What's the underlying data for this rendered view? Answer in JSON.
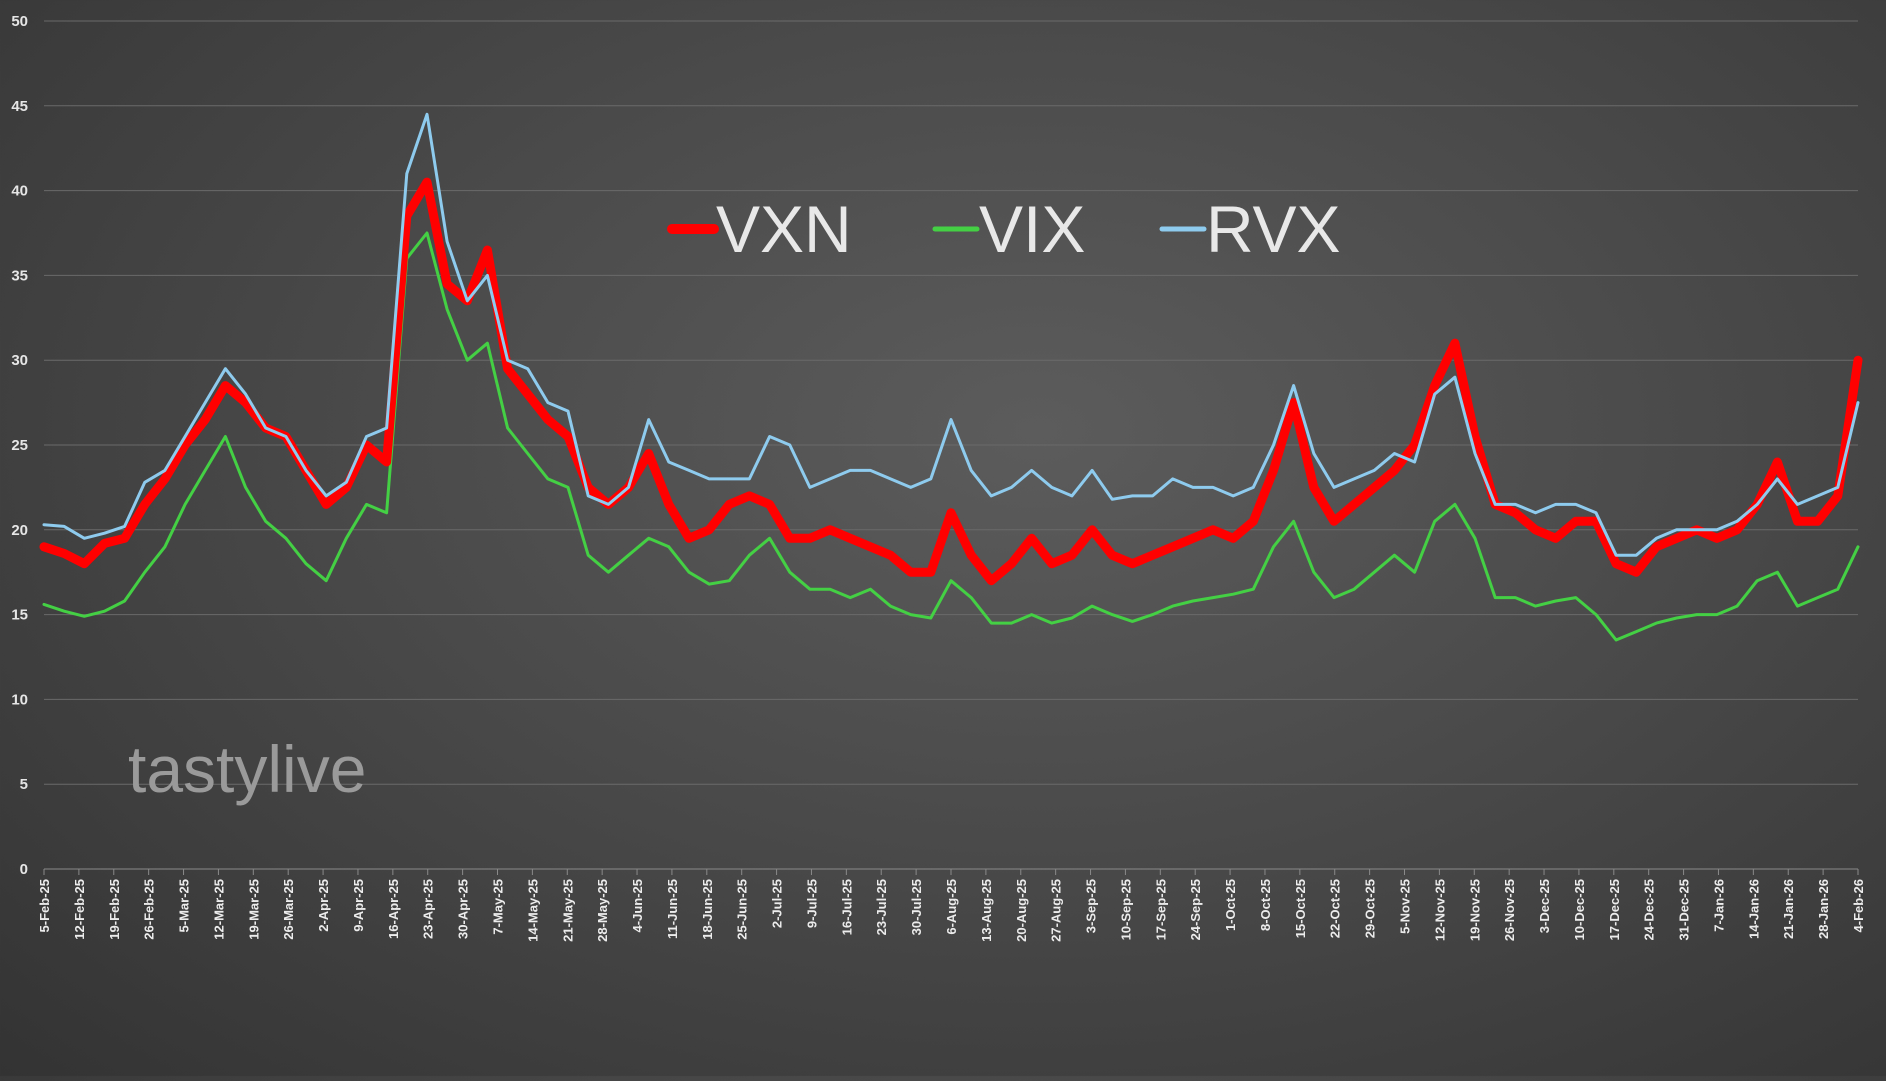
{
  "watermark": "tastylive",
  "chart_data": {
    "type": "line",
    "title": "",
    "xlabel": "",
    "ylabel": "",
    "ylim": [
      0,
      50
    ],
    "yticks": [
      0,
      5,
      10,
      15,
      20,
      25,
      30,
      35,
      40,
      45,
      50
    ],
    "grid": "horizontal",
    "legend_position": "top-center",
    "x_tick_labels": [
      "5-Feb-25",
      "12-Feb-25",
      "19-Feb-25",
      "26-Feb-25",
      "5-Mar-25",
      "12-Mar-25",
      "19-Mar-25",
      "26-Mar-25",
      "2-Apr-25",
      "9-Apr-25",
      "16-Apr-25",
      "23-Apr-25",
      "30-Apr-25",
      "7-May-25",
      "14-May-25",
      "21-May-25",
      "28-May-25",
      "4-Jun-25",
      "11-Jun-25",
      "18-Jun-25",
      "25-Jun-25",
      "2-Jul-25",
      "9-Jul-25",
      "16-Jul-25",
      "23-Jul-25",
      "30-Jul-25",
      "6-Aug-25",
      "13-Aug-25",
      "20-Aug-25",
      "27-Aug-25",
      "3-Sep-25",
      "10-Sep-25",
      "17-Sep-25",
      "24-Sep-25",
      "1-Oct-25",
      "8-Oct-25",
      "15-Oct-25",
      "22-Oct-25",
      "29-Oct-25",
      "5-Nov-25",
      "12-Nov-25",
      "19-Nov-25",
      "26-Nov-25",
      "3-Dec-25",
      "10-Dec-25",
      "17-Dec-25",
      "24-Dec-25",
      "31-Dec-25",
      "7-Jan-26",
      "14-Jan-26",
      "21-Jan-26",
      "28-Jan-26",
      "4-Feb-26"
    ],
    "series": [
      {
        "name": "VXN",
        "color": "#ff0000",
        "stroke": "thick",
        "values": [
          19.0,
          18.6,
          18.0,
          19.2,
          19.5,
          21.5,
          23.0,
          25.0,
          26.5,
          28.5,
          27.5,
          26.0,
          25.5,
          23.5,
          21.5,
          22.5,
          25.0,
          24.0,
          38.5,
          40.5,
          34.5,
          33.5,
          36.5,
          29.5,
          28.0,
          26.5,
          25.5,
          22.5,
          21.5,
          22.5,
          24.5,
          21.5,
          19.5,
          20.0,
          21.5,
          22.0,
          21.5,
          19.5,
          19.5,
          20.0,
          19.5,
          19.0,
          18.5,
          17.5,
          17.5,
          21.0,
          18.5,
          17.0,
          18.0,
          19.5,
          18.0,
          18.5,
          20.0,
          18.5,
          18.0,
          18.5,
          19.0,
          19.5,
          20.0,
          19.5,
          20.5,
          23.5,
          27.5,
          22.5,
          20.5,
          21.5,
          22.5,
          23.5,
          25.0,
          28.5,
          31.0,
          25.5,
          21.5,
          21.0,
          20.0,
          19.5,
          20.5,
          20.5,
          18.0,
          17.5,
          19.0,
          19.5,
          20.0,
          19.5,
          20.0,
          21.5,
          24.0,
          20.5,
          20.5,
          22.0,
          30.0
        ]
      },
      {
        "name": "VIX",
        "color": "#44d044",
        "stroke": "normal",
        "values": [
          15.6,
          15.2,
          14.9,
          15.2,
          15.8,
          17.5,
          19.0,
          21.5,
          23.5,
          25.5,
          22.5,
          20.5,
          19.5,
          18.0,
          17.0,
          19.5,
          21.5,
          21.0,
          36.0,
          37.5,
          33.0,
          30.0,
          31.0,
          26.0,
          24.5,
          23.0,
          22.5,
          18.5,
          17.5,
          18.5,
          19.5,
          19.0,
          17.5,
          16.8,
          17.0,
          18.5,
          19.5,
          17.5,
          16.5,
          16.5,
          16.0,
          16.5,
          15.5,
          15.0,
          14.8,
          17.0,
          16.0,
          14.5,
          14.5,
          15.0,
          14.5,
          14.8,
          15.5,
          15.0,
          14.6,
          15.0,
          15.5,
          15.8,
          16.0,
          16.2,
          16.5,
          19.0,
          20.5,
          17.5,
          16.0,
          16.5,
          17.5,
          18.5,
          17.5,
          20.5,
          21.5,
          19.5,
          16.0,
          16.0,
          15.5,
          15.8,
          16.0,
          15.0,
          13.5,
          14.0,
          14.5,
          14.8,
          15.0,
          15.0,
          15.5,
          17.0,
          17.5,
          15.5,
          16.0,
          16.5,
          19.0
        ]
      },
      {
        "name": "RVX",
        "color": "#8ecbee",
        "stroke": "normal",
        "values": [
          20.3,
          20.2,
          19.5,
          19.8,
          20.2,
          22.8,
          23.5,
          25.5,
          27.5,
          29.5,
          28.0,
          26.0,
          25.5,
          23.5,
          22.0,
          22.8,
          25.5,
          26.0,
          41.0,
          44.5,
          37.0,
          33.5,
          35.0,
          30.0,
          29.5,
          27.5,
          27.0,
          22.0,
          21.5,
          22.5,
          26.5,
          24.0,
          23.5,
          23.0,
          23.0,
          23.0,
          25.5,
          25.0,
          22.5,
          23.0,
          23.5,
          23.5,
          23.0,
          22.5,
          23.0,
          26.5,
          23.5,
          22.0,
          22.5,
          23.5,
          22.5,
          22.0,
          23.5,
          21.8,
          22.0,
          22.0,
          23.0,
          22.5,
          22.5,
          22.0,
          22.5,
          25.0,
          28.5,
          24.5,
          22.5,
          23.0,
          23.5,
          24.5,
          24.0,
          28.0,
          29.0,
          24.5,
          21.5,
          21.5,
          21.0,
          21.5,
          21.5,
          21.0,
          18.5,
          18.5,
          19.5,
          20.0,
          20.0,
          20.0,
          20.5,
          21.5,
          23.0,
          21.5,
          22.0,
          22.5,
          27.5
        ]
      }
    ]
  }
}
